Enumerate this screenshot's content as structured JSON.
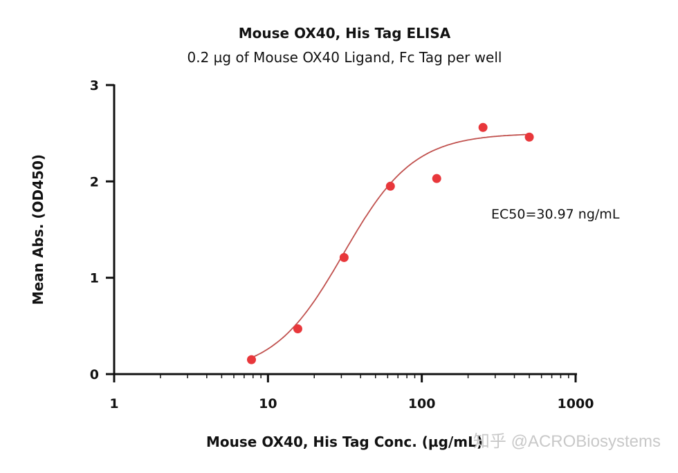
{
  "chart_data": {
    "type": "scatter",
    "title": "Mouse OX40, His Tag ELISA",
    "subtitle": "0.2 µg of Mouse OX40 Ligand, Fc Tag per well",
    "xlabel": "Mouse OX40, His Tag Conc. (µg/mL)",
    "ylabel": "Mean Abs. (OD450)",
    "xscale": "log",
    "xlim": [
      1,
      1000
    ],
    "ylim": [
      0,
      3
    ],
    "xticks": [
      "1",
      "10",
      "100",
      "1000"
    ],
    "yticks": [
      "0",
      "1",
      "2",
      "3"
    ],
    "grid": false,
    "points": {
      "x": [
        7.8125,
        15.625,
        31.25,
        62.5,
        125,
        250,
        500
      ],
      "y": [
        0.15,
        0.47,
        1.21,
        1.95,
        2.03,
        2.56,
        2.46
      ]
    },
    "fit": {
      "model": "4PL",
      "bottom": 0.0,
      "top": 2.5,
      "ec50": 30.97,
      "hill": 1.9
    },
    "annotation": "EC50=30.97 ng/mL",
    "color": "#e8373b",
    "curve_color": "#c0504d"
  },
  "watermark": "知乎 @ACROBiosystems"
}
